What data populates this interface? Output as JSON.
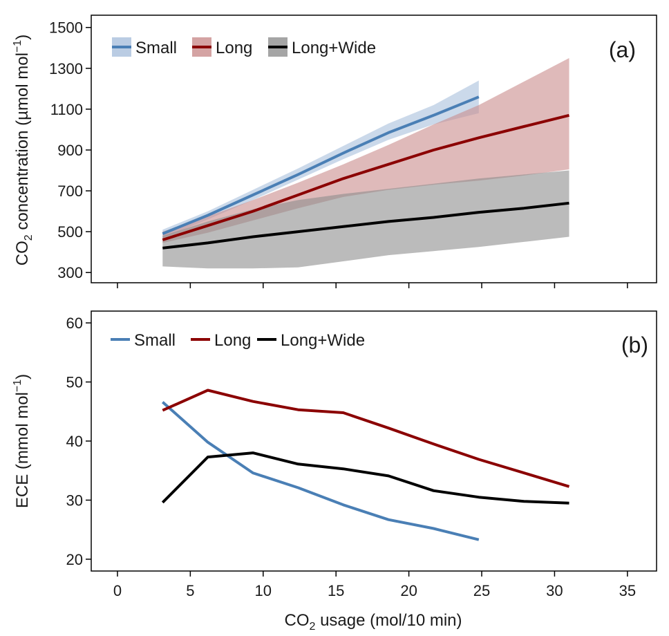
{
  "figure": {
    "x_axis_label_main": "CO",
    "x_axis_label_sub": "2",
    "x_axis_label_rest": " usage (mol/10 min)"
  },
  "chart_data": [
    {
      "type": "line",
      "panel": "(a)",
      "ylabel_main": "CO",
      "ylabel_sub": "2",
      "ylabel_mid": " concentration (µmol mol",
      "ylabel_sup": "−1",
      "ylabel_end": ")",
      "ylabel": "CO2 concentration (µmol mol−1)",
      "xlabel": "CO2 usage (mol/10 min)",
      "xlim": [
        -1.8,
        37
      ],
      "ylim": [
        250,
        1560
      ],
      "x_ticks": [
        0,
        5,
        10,
        15,
        20,
        25,
        30,
        35
      ],
      "y_ticks": [
        300,
        500,
        700,
        900,
        1100,
        1300,
        1500
      ],
      "y_tick_labels": [
        "300",
        "500",
        "700",
        "900",
        "1100",
        "1300",
        "1500"
      ],
      "legend": [
        "Small",
        "Long",
        "Long+Wide"
      ],
      "legend_position": "top-left",
      "series": [
        {
          "name": "Small",
          "color": "#4a7fb5",
          "band_color": "#a9bfdc",
          "x": [
            3.1,
            6.2,
            9.3,
            12.4,
            15.5,
            18.6,
            21.7,
            24.8
          ],
          "values": [
            490,
            580,
            680,
            780,
            885,
            985,
            1070,
            1160
          ],
          "lower": [
            470,
            560,
            655,
            755,
            855,
            950,
            1025,
            1080
          ],
          "upper": [
            510,
            600,
            705,
            810,
            920,
            1030,
            1120,
            1240
          ]
        },
        {
          "name": "Long",
          "color": "#8b0000",
          "band_color": "#c98c8c",
          "x": [
            3.1,
            6.2,
            9.3,
            12.4,
            15.5,
            18.6,
            21.7,
            24.8,
            27.9,
            31.0
          ],
          "values": [
            460,
            530,
            600,
            680,
            760,
            830,
            900,
            960,
            1015,
            1070
          ],
          "lower": [
            445,
            495,
            555,
            615,
            670,
            705,
            730,
            750,
            775,
            805
          ],
          "upper": [
            500,
            575,
            655,
            740,
            830,
            925,
            1025,
            1120,
            1235,
            1350
          ]
        },
        {
          "name": "Long+Wide",
          "color": "#000000",
          "band_color": "#8e8e8e",
          "x": [
            3.1,
            6.2,
            9.3,
            12.4,
            15.5,
            18.6,
            21.7,
            24.8,
            27.9,
            31.0
          ],
          "values": [
            420,
            445,
            475,
            500,
            525,
            550,
            570,
            595,
            615,
            640
          ],
          "lower": [
            330,
            320,
            320,
            325,
            355,
            385,
            405,
            425,
            450,
            475
          ],
          "upper": [
            480,
            550,
            610,
            655,
            685,
            710,
            735,
            760,
            780,
            800
          ]
        }
      ]
    },
    {
      "type": "line",
      "panel": "(b)",
      "ylabel_main": "ECE (mmol mol",
      "ylabel_sup": "−1",
      "ylabel_end": ")",
      "ylabel": "ECE (mmol mol−1)",
      "xlabel": "CO2 usage (mol/10 min)",
      "xlim": [
        -1.8,
        37
      ],
      "ylim": [
        18,
        62
      ],
      "x_ticks": [
        0,
        5,
        10,
        15,
        20,
        25,
        30,
        35
      ],
      "x_tick_labels": [
        "0",
        "5",
        "10",
        "15",
        "20",
        "25",
        "30",
        "35"
      ],
      "y_ticks": [
        20,
        30,
        40,
        50,
        60
      ],
      "y_tick_labels": [
        "20",
        "30",
        "40",
        "50",
        "60"
      ],
      "legend": [
        "Small",
        "Long",
        "Long+Wide"
      ],
      "legend_position": "top-left",
      "series": [
        {
          "name": "Small",
          "color": "#4a7fb5",
          "x": [
            3.1,
            6.2,
            9.3,
            12.4,
            15.5,
            18.6,
            21.7,
            24.8
          ],
          "values": [
            46.6,
            39.8,
            34.6,
            32.1,
            29.2,
            26.7,
            25.2,
            23.3
          ]
        },
        {
          "name": "Long",
          "color": "#8b0000",
          "x": [
            3.1,
            6.2,
            9.3,
            12.4,
            15.5,
            18.6,
            21.7,
            24.8,
            27.9,
            31.0
          ],
          "values": [
            45.2,
            48.6,
            46.7,
            45.3,
            44.8,
            42.2,
            39.5,
            36.9,
            34.6,
            32.3
          ]
        },
        {
          "name": "Long+Wide",
          "color": "#000000",
          "x": [
            3.1,
            6.2,
            9.3,
            12.4,
            15.5,
            18.6,
            21.7,
            24.8,
            27.9,
            31.0
          ],
          "values": [
            29.6,
            37.3,
            38.0,
            36.1,
            35.3,
            34.1,
            31.6,
            30.5,
            29.8,
            29.5
          ]
        }
      ]
    }
  ]
}
